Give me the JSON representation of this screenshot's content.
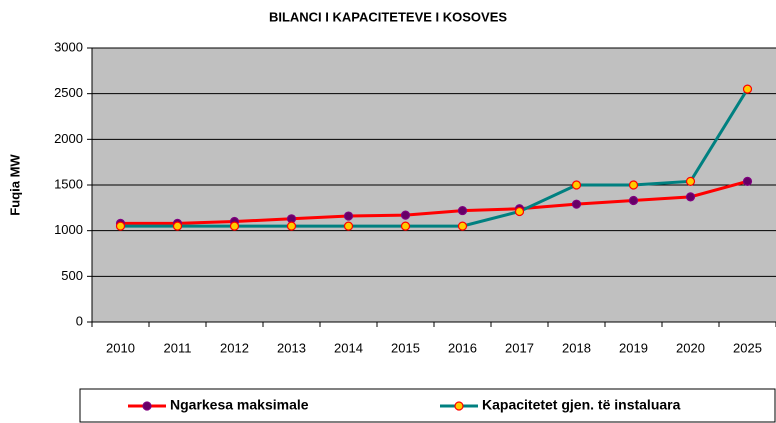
{
  "chart_data": {
    "type": "line",
    "title": "BILANCI I KAPACITETEVE I KOSOVES",
    "y_label": "Fuqia MW",
    "categories": [
      "2010",
      "2011",
      "2012",
      "2013",
      "2014",
      "2015",
      "2016",
      "2017",
      "2018",
      "2019",
      "2020",
      "2025"
    ],
    "series": [
      {
        "name": "Ngarkesa maksimale",
        "color": "#ff0000",
        "marker_color": "#660066",
        "marker_edge": "#800080",
        "values": [
          1080,
          1080,
          1100,
          1130,
          1160,
          1170,
          1220,
          1240,
          1290,
          1330,
          1370,
          1540
        ]
      },
      {
        "name": "Kapacitetet gjen. të instaluara",
        "color": "#008080",
        "marker_color": "#ffcc00",
        "marker_edge": "#ff0000",
        "values": [
          1050,
          1050,
          1050,
          1050,
          1050,
          1050,
          1050,
          1210,
          1500,
          1500,
          1540,
          2550
        ]
      }
    ],
    "ylim": [
      0,
      3000
    ],
    "yticks": [
      0,
      500,
      1000,
      1500,
      2000,
      2500,
      3000
    ],
    "grid": true,
    "background": "#c0c0c0",
    "legend": "bottom"
  }
}
